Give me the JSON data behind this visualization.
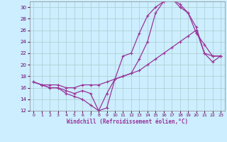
{
  "xlabel": "Windchill (Refroidissement éolien,°C)",
  "bg_color": "#cceeff",
  "line_color": "#993399",
  "grid_color": "#aacccc",
  "xlim": [
    -0.5,
    23.5
  ],
  "ylim": [
    12,
    31
  ],
  "yticks": [
    12,
    14,
    16,
    18,
    20,
    22,
    24,
    26,
    28,
    30
  ],
  "xticks": [
    0,
    1,
    2,
    3,
    4,
    5,
    6,
    7,
    8,
    9,
    10,
    11,
    12,
    13,
    14,
    15,
    16,
    17,
    18,
    19,
    20,
    21,
    22,
    23
  ],
  "line1_x": [
    0,
    1,
    2,
    3,
    4,
    5,
    6,
    7,
    8,
    9,
    10,
    11,
    12,
    13,
    14,
    15,
    16,
    17,
    18,
    19,
    20,
    21,
    22,
    23
  ],
  "line1_y": [
    17.0,
    16.5,
    16.0,
    16.0,
    15.0,
    14.5,
    14.0,
    13.0,
    12.0,
    12.5,
    17.5,
    21.5,
    22.0,
    25.5,
    28.5,
    30.0,
    31.0,
    31.5,
    30.5,
    29.0,
    25.5,
    23.5,
    21.5,
    21.5
  ],
  "line2_x": [
    0,
    1,
    2,
    3,
    4,
    5,
    6,
    7,
    8,
    9,
    10,
    11,
    12,
    13,
    14,
    15,
    16,
    17,
    18,
    19,
    20,
    21,
    22,
    23
  ],
  "line2_y": [
    17.0,
    16.5,
    16.5,
    16.5,
    16.0,
    16.0,
    16.5,
    16.5,
    16.5,
    17.0,
    17.5,
    18.0,
    18.5,
    19.0,
    20.0,
    21.0,
    22.0,
    23.0,
    24.0,
    25.0,
    26.0,
    22.0,
    21.5,
    21.5
  ],
  "line3_x": [
    0,
    1,
    2,
    3,
    4,
    5,
    6,
    7,
    8,
    9,
    10,
    11,
    12,
    13,
    14,
    15,
    16,
    17,
    18,
    19,
    20,
    21,
    22,
    23
  ],
  "line3_y": [
    17.0,
    16.5,
    16.0,
    16.0,
    15.5,
    15.0,
    15.5,
    15.0,
    12.0,
    15.0,
    17.5,
    18.0,
    18.5,
    21.0,
    24.0,
    29.0,
    31.0,
    31.5,
    30.0,
    29.0,
    26.5,
    22.0,
    20.5,
    21.5
  ]
}
